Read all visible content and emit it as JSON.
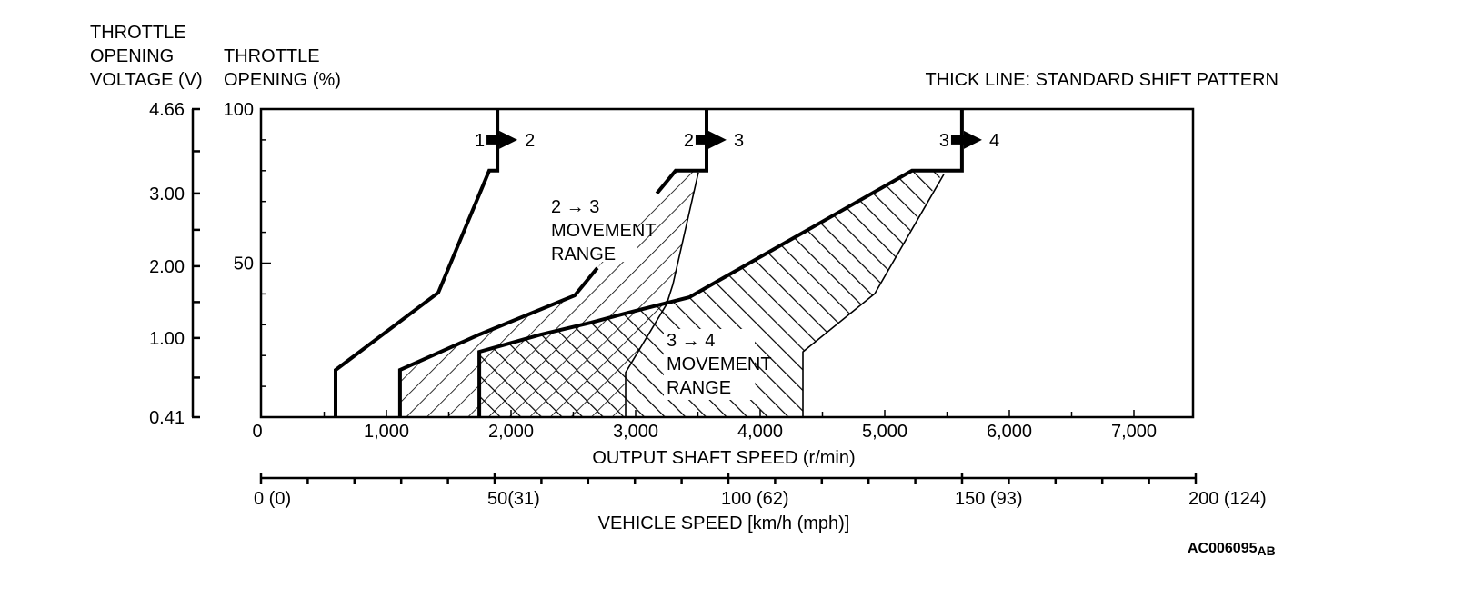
{
  "chart_data": {
    "type": "line",
    "title": "THICK LINE: STANDARD SHIFT PATTERN",
    "figure_id": "AC006095",
    "figure_id_suffix": "AB",
    "y_axis_voltage": {
      "label_lines": [
        "THROTTLE",
        "OPENING",
        "VOLTAGE (V)"
      ],
      "ticks": [
        {
          "label": "4.66",
          "throttle_percent_equivalent": 100
        },
        {
          "label": "3.00",
          "throttle_percent_equivalent": 72.6
        },
        {
          "label": "2.00",
          "throttle_percent_equivalent": 49.0
        },
        {
          "label": "1.00",
          "throttle_percent_equivalent": 25.7
        },
        {
          "label": "0.41",
          "throttle_percent_equivalent": 0
        }
      ]
    },
    "y_axis_throttle": {
      "label_lines": [
        "THROTTLE",
        "OPENING (%)"
      ],
      "ylim": [
        0,
        100
      ],
      "ticks": [
        {
          "label": "100",
          "value": 100
        },
        {
          "label": "50",
          "value": 50
        }
      ],
      "minor_step": 10
    },
    "x_axis_rpm": {
      "label": "OUTPUT SHAFT SPEED (r/min)",
      "xlim": [
        0,
        7475
      ],
      "ticks": [
        {
          "label": "0",
          "value": 0
        },
        {
          "label": "1,000",
          "value": 1000
        },
        {
          "label": "2,000",
          "value": 2000
        },
        {
          "label": "3,000",
          "value": 3000
        },
        {
          "label": "4,000",
          "value": 4000
        },
        {
          "label": "5,000",
          "value": 5000
        },
        {
          "label": "6,000",
          "value": 6000
        },
        {
          "label": "7,000",
          "value": 7000
        }
      ],
      "minor_step": 500
    },
    "x_axis_vehicle": {
      "label": "VEHICLE SPEED [km/h (mph)]",
      "xlim": [
        0,
        200
      ],
      "ticks": [
        {
          "label": "0 (0)",
          "value": 0
        },
        {
          "label": "50(31)",
          "value": 50
        },
        {
          "label": "100 (62)",
          "value": 100
        },
        {
          "label": "150 (93)",
          "value": 150
        },
        {
          "label": "200 (124)",
          "value": 200
        }
      ],
      "minor_step": 10
    },
    "shift_lines": [
      {
        "name": "1-2",
        "from": "1",
        "to": "2",
        "arrow_at_percent": 90,
        "points": [
          [
            591,
            0
          ],
          [
            591,
            15.3
          ],
          [
            1416,
            40.4
          ],
          [
            1825,
            80
          ],
          [
            1891,
            80
          ],
          [
            1891,
            100
          ]
        ]
      },
      {
        "name": "2-3",
        "from": "2",
        "to": "3",
        "arrow_at_percent": 90,
        "points": [
          [
            1109,
            0
          ],
          [
            1109,
            15.3
          ],
          [
            1745,
            26.8
          ],
          [
            2511,
            39.5
          ],
          [
            2693,
            48.4
          ]
        ],
        "upper_points": [
          [
            3170,
            72.6
          ],
          [
            3321,
            80
          ],
          [
            3569,
            80
          ],
          [
            3569,
            100
          ]
        ]
      },
      {
        "name": "3-4",
        "from": "3",
        "to": "4",
        "arrow_at_percent": 90,
        "points": [
          [
            1745,
            0
          ],
          [
            1745,
            21.2
          ],
          [
            2241,
            26.8
          ],
          [
            2642,
            30.7
          ],
          [
            2912,
            33.6
          ],
          [
            3431,
            38.9
          ],
          [
            5219,
            80
          ],
          [
            5620,
            80
          ],
          [
            5620,
            100
          ]
        ]
      }
    ],
    "movement_ranges": [
      {
        "name": "2-3",
        "label_lines": [
          "2 → 3",
          "MOVEMENT",
          "RANGE"
        ],
        "hatch": "forward",
        "polygon": [
          [
            1109,
            0
          ],
          [
            1109,
            15.3
          ],
          [
            1745,
            26.8
          ],
          [
            2511,
            39.5
          ],
          [
            2693,
            48.4
          ],
          [
            3170,
            72.6
          ],
          [
            3321,
            80
          ],
          [
            3504,
            80
          ],
          [
            3299,
            43.1
          ],
          [
            3248,
            36.6
          ],
          [
            2920,
            14.5
          ],
          [
            2920,
            0
          ]
        ],
        "boundary": [
          [
            3504,
            79.4
          ],
          [
            3299,
            43.1
          ],
          [
            3248,
            36.6
          ],
          [
            2920,
            14.5
          ],
          [
            2920,
            0
          ]
        ]
      },
      {
        "name": "3-4",
        "label_lines": [
          "3 → 4",
          "MOVEMENT",
          "RANGE"
        ],
        "hatch": "backward",
        "polygon": [
          [
            1745,
            0
          ],
          [
            1745,
            21.2
          ],
          [
            2241,
            26.8
          ],
          [
            2642,
            30.7
          ],
          [
            2912,
            33.6
          ],
          [
            3431,
            38.9
          ],
          [
            5219,
            80
          ],
          [
            5474,
            80
          ],
          [
            4920,
            40.1
          ],
          [
            4343,
            21.2
          ],
          [
            4343,
            0
          ]
        ],
        "boundary": [
          [
            5474,
            78.8
          ],
          [
            4920,
            40.1
          ],
          [
            4343,
            21.2
          ],
          [
            4343,
            0
          ]
        ]
      }
    ]
  }
}
